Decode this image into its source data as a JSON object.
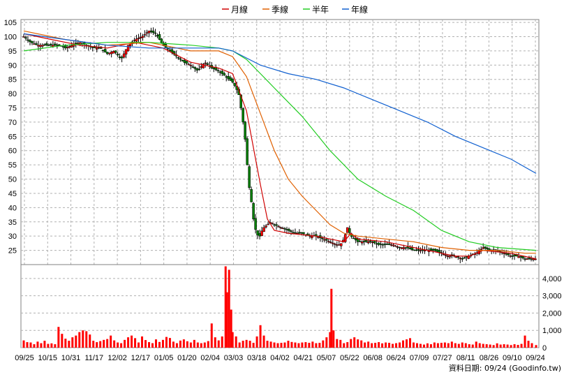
{
  "chart_data": {
    "type": "candlestick",
    "legend": [
      {
        "label": "月線",
        "color": "#d00000"
      },
      {
        "label": "季線",
        "color": "#e06000"
      },
      {
        "label": "半年",
        "color": "#22cc22"
      },
      {
        "label": "年線",
        "color": "#1060d0"
      }
    ],
    "price_yticks": [
      25,
      30,
      35,
      40,
      45,
      50,
      55,
      60,
      65,
      70,
      75,
      80,
      85,
      90,
      95,
      100,
      105
    ],
    "volume_yticks": [
      "0",
      "1,000",
      "2,000",
      "3,000",
      "4,000"
    ],
    "x_labels": [
      "09/25",
      "10/15",
      "10/31",
      "11/17",
      "12/02",
      "12/17",
      "01/05",
      "01/20",
      "02/04",
      "03/03",
      "03/18",
      "04/02",
      "04/21",
      "05/07",
      "05/22",
      "06/08",
      "06/24",
      "07/09",
      "07/27",
      "08/11",
      "08/26",
      "09/10",
      "09/24"
    ],
    "footer": "資料日期: 09/24 (Goodinfo.tw)",
    "price_range": [
      20,
      106
    ],
    "volume_range": [
      0,
      4800
    ],
    "grid": true,
    "legend_position": "top-center",
    "colors": {
      "up": "#ff0000",
      "down": "#008000",
      "volume": "#ff0000",
      "grid": "#b0b0b0"
    },
    "price_series": [
      [
        0,
        100
      ],
      [
        10,
        98
      ],
      [
        20,
        97
      ],
      [
        30,
        97
      ],
      [
        40,
        97
      ],
      [
        50,
        97
      ],
      [
        60,
        96
      ],
      [
        70,
        97
      ],
      [
        80,
        98
      ],
      [
        90,
        97
      ],
      [
        100,
        96
      ],
      [
        110,
        96
      ],
      [
        120,
        94
      ],
      [
        130,
        95
      ],
      [
        140,
        92
      ],
      [
        150,
        97
      ],
      [
        160,
        99
      ],
      [
        170,
        100
      ],
      [
        180,
        102
      ],
      [
        190,
        101
      ],
      [
        200,
        97
      ],
      [
        210,
        95
      ],
      [
        220,
        93
      ],
      [
        230,
        91
      ],
      [
        240,
        90
      ],
      [
        250,
        88
      ],
      [
        260,
        91
      ],
      [
        270,
        89
      ],
      [
        280,
        88
      ],
      [
        290,
        86
      ],
      [
        300,
        84
      ],
      [
        305,
        82
      ],
      [
        310,
        79
      ],
      [
        312,
        75
      ],
      [
        315,
        70
      ],
      [
        318,
        64
      ],
      [
        320,
        58
      ],
      [
        322,
        52
      ],
      [
        324,
        47
      ],
      [
        326,
        44
      ],
      [
        328,
        40
      ],
      [
        330,
        36
      ],
      [
        332,
        33
      ],
      [
        335,
        31
      ],
      [
        338,
        29
      ],
      [
        340,
        31
      ],
      [
        345,
        33
      ],
      [
        350,
        34
      ],
      [
        355,
        35
      ],
      [
        360,
        34
      ],
      [
        370,
        33
      ],
      [
        380,
        32
      ],
      [
        390,
        31
      ],
      [
        400,
        31
      ],
      [
        410,
        30
      ],
      [
        420,
        30
      ],
      [
        430,
        29
      ],
      [
        440,
        28
      ],
      [
        450,
        27
      ],
      [
        455,
        27
      ],
      [
        460,
        29
      ],
      [
        465,
        33
      ],
      [
        470,
        30
      ],
      [
        480,
        28
      ],
      [
        490,
        28
      ],
      [
        500,
        28
      ],
      [
        510,
        27
      ],
      [
        520,
        27
      ],
      [
        530,
        27
      ],
      [
        540,
        26
      ],
      [
        550,
        26
      ],
      [
        560,
        25
      ],
      [
        570,
        25
      ],
      [
        580,
        25
      ],
      [
        590,
        25
      ],
      [
        600,
        24
      ],
      [
        610,
        23
      ],
      [
        620,
        23
      ],
      [
        630,
        22
      ],
      [
        640,
        23
      ],
      [
        650,
        24
      ],
      [
        660,
        26
      ],
      [
        670,
        25
      ],
      [
        680,
        25
      ],
      [
        690,
        24
      ],
      [
        700,
        23
      ],
      [
        710,
        23
      ],
      [
        720,
        22
      ],
      [
        730,
        22
      ],
      [
        736,
        22
      ]
    ],
    "ma_month": [
      [
        0,
        101
      ],
      [
        40,
        99
      ],
      [
        80,
        97
      ],
      [
        120,
        96
      ],
      [
        160,
        98
      ],
      [
        200,
        96
      ],
      [
        240,
        91
      ],
      [
        280,
        89
      ],
      [
        300,
        87
      ],
      [
        320,
        74
      ],
      [
        340,
        48
      ],
      [
        350,
        36
      ],
      [
        360,
        32
      ],
      [
        380,
        31
      ],
      [
        420,
        30
      ],
      [
        440,
        29
      ],
      [
        460,
        28
      ],
      [
        470,
        31
      ],
      [
        480,
        29
      ],
      [
        520,
        28
      ],
      [
        560,
        26
      ],
      [
        600,
        24
      ],
      [
        620,
        23
      ],
      [
        640,
        23
      ],
      [
        660,
        25
      ],
      [
        700,
        24
      ],
      [
        736,
        22
      ]
    ],
    "ma_quarter": [
      [
        0,
        102
      ],
      [
        60,
        99
      ],
      [
        120,
        97
      ],
      [
        180,
        98
      ],
      [
        240,
        95
      ],
      [
        280,
        95
      ],
      [
        300,
        93
      ],
      [
        320,
        86
      ],
      [
        340,
        73
      ],
      [
        360,
        60
      ],
      [
        380,
        50
      ],
      [
        400,
        44
      ],
      [
        420,
        39
      ],
      [
        440,
        34
      ],
      [
        460,
        31
      ],
      [
        480,
        30
      ],
      [
        520,
        29
      ],
      [
        560,
        28
      ],
      [
        600,
        26
      ],
      [
        640,
        25
      ],
      [
        680,
        25
      ],
      [
        720,
        24
      ],
      [
        736,
        24
      ]
    ],
    "ma_half": [
      [
        0,
        95
      ],
      [
        60,
        97
      ],
      [
        120,
        98
      ],
      [
        180,
        98
      ],
      [
        240,
        97
      ],
      [
        280,
        96
      ],
      [
        300,
        95
      ],
      [
        320,
        92
      ],
      [
        340,
        87
      ],
      [
        360,
        82
      ],
      [
        380,
        77
      ],
      [
        400,
        72
      ],
      [
        420,
        66
      ],
      [
        440,
        60
      ],
      [
        460,
        55
      ],
      [
        480,
        50
      ],
      [
        520,
        44
      ],
      [
        560,
        39
      ],
      [
        600,
        32
      ],
      [
        640,
        28
      ],
      [
        680,
        26
      ],
      [
        736,
        25
      ]
    ],
    "ma_year": [
      [
        0,
        101
      ],
      [
        60,
        99
      ],
      [
        120,
        97
      ],
      [
        180,
        96
      ],
      [
        240,
        96
      ],
      [
        280,
        96
      ],
      [
        300,
        95
      ],
      [
        340,
        90
      ],
      [
        380,
        87
      ],
      [
        420,
        85
      ],
      [
        460,
        82
      ],
      [
        500,
        78
      ],
      [
        540,
        74
      ],
      [
        580,
        70
      ],
      [
        620,
        65
      ],
      [
        660,
        61
      ],
      [
        700,
        57
      ],
      [
        736,
        52
      ]
    ],
    "volume": [
      [
        0,
        420
      ],
      [
        5,
        320
      ],
      [
        10,
        300
      ],
      [
        15,
        200
      ],
      [
        20,
        350
      ],
      [
        25,
        260
      ],
      [
        30,
        400
      ],
      [
        35,
        220
      ],
      [
        40,
        250
      ],
      [
        45,
        200
      ],
      [
        50,
        1200
      ],
      [
        55,
        800
      ],
      [
        60,
        520
      ],
      [
        65,
        400
      ],
      [
        70,
        600
      ],
      [
        75,
        700
      ],
      [
        80,
        900
      ],
      [
        85,
        1000
      ],
      [
        90,
        950
      ],
      [
        95,
        760
      ],
      [
        100,
        400
      ],
      [
        105,
        320
      ],
      [
        110,
        380
      ],
      [
        115,
        450
      ],
      [
        120,
        500
      ],
      [
        125,
        700
      ],
      [
        130,
        420
      ],
      [
        135,
        300
      ],
      [
        140,
        260
      ],
      [
        145,
        450
      ],
      [
        150,
        600
      ],
      [
        155,
        700
      ],
      [
        160,
        550
      ],
      [
        165,
        300
      ],
      [
        170,
        650
      ],
      [
        175,
        440
      ],
      [
        180,
        320
      ],
      [
        185,
        260
      ],
      [
        190,
        480
      ],
      [
        195,
        330
      ],
      [
        200,
        450
      ],
      [
        205,
        620
      ],
      [
        210,
        560
      ],
      [
        215,
        350
      ],
      [
        220,
        260
      ],
      [
        225,
        410
      ],
      [
        230,
        480
      ],
      [
        235,
        370
      ],
      [
        240,
        300
      ],
      [
        245,
        450
      ],
      [
        250,
        300
      ],
      [
        255,
        260
      ],
      [
        260,
        300
      ],
      [
        265,
        380
      ],
      [
        270,
        1400
      ],
      [
        275,
        600
      ],
      [
        280,
        420
      ],
      [
        285,
        650
      ],
      [
        290,
        4700
      ],
      [
        292,
        3200
      ],
      [
        295,
        4500
      ],
      [
        298,
        2200
      ],
      [
        300,
        900
      ],
      [
        305,
        650
      ],
      [
        310,
        300
      ],
      [
        315,
        400
      ],
      [
        320,
        450
      ],
      [
        325,
        400
      ],
      [
        330,
        280
      ],
      [
        335,
        650
      ],
      [
        340,
        1300
      ],
      [
        345,
        700
      ],
      [
        350,
        400
      ],
      [
        355,
        350
      ],
      [
        360,
        300
      ],
      [
        365,
        260
      ],
      [
        370,
        280
      ],
      [
        375,
        300
      ],
      [
        380,
        400
      ],
      [
        385,
        330
      ],
      [
        390,
        300
      ],
      [
        395,
        260
      ],
      [
        400,
        300
      ],
      [
        405,
        320
      ],
      [
        410,
        280
      ],
      [
        415,
        350
      ],
      [
        420,
        260
      ],
      [
        425,
        280
      ],
      [
        430,
        420
      ],
      [
        435,
        600
      ],
      [
        440,
        900
      ],
      [
        442,
        3400
      ],
      [
        445,
        1000
      ],
      [
        450,
        500
      ],
      [
        455,
        450
      ],
      [
        460,
        260
      ],
      [
        465,
        320
      ],
      [
        470,
        500
      ],
      [
        475,
        600
      ],
      [
        480,
        480
      ],
      [
        485,
        420
      ],
      [
        490,
        300
      ],
      [
        495,
        350
      ],
      [
        500,
        260
      ],
      [
        505,
        280
      ],
      [
        510,
        320
      ],
      [
        515,
        250
      ],
      [
        520,
        300
      ],
      [
        525,
        280
      ],
      [
        530,
        220
      ],
      [
        535,
        260
      ],
      [
        540,
        300
      ],
      [
        545,
        420
      ],
      [
        550,
        480
      ],
      [
        555,
        550
      ],
      [
        560,
        300
      ],
      [
        565,
        260
      ],
      [
        570,
        220
      ],
      [
        575,
        180
      ],
      [
        580,
        250
      ],
      [
        585,
        200
      ],
      [
        590,
        300
      ],
      [
        595,
        260
      ],
      [
        600,
        280
      ],
      [
        605,
        300
      ],
      [
        610,
        260
      ],
      [
        615,
        350
      ],
      [
        620,
        260
      ],
      [
        625,
        220
      ],
      [
        630,
        300
      ],
      [
        635,
        260
      ],
      [
        640,
        200
      ],
      [
        645,
        180
      ],
      [
        650,
        350
      ],
      [
        655,
        260
      ],
      [
        660,
        220
      ],
      [
        665,
        200
      ],
      [
        670,
        180
      ],
      [
        675,
        150
      ],
      [
        680,
        250
      ],
      [
        685,
        180
      ],
      [
        690,
        200
      ],
      [
        695,
        180
      ],
      [
        700,
        150
      ],
      [
        705,
        200
      ],
      [
        710,
        160
      ],
      [
        715,
        220
      ],
      [
        720,
        700
      ],
      [
        725,
        400
      ],
      [
        730,
        260
      ],
      [
        736,
        150
      ]
    ]
  }
}
